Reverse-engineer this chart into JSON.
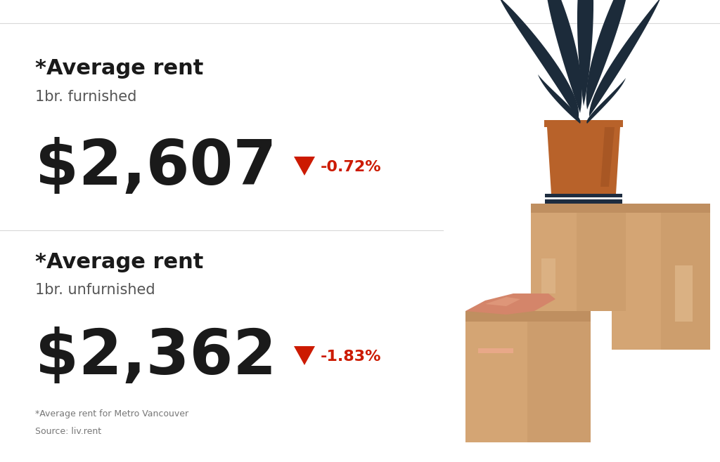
{
  "background_color": "#ffffff",
  "border_color": "#d8d8d8",
  "text_color_dark": "#1a1a1a",
  "text_color_medium": "#555555",
  "text_color_light": "#777777",
  "red_color": "#cc1a00",
  "section1": {
    "label": "*Average rent",
    "sublabel": "1br. furnished",
    "value": "$2,607",
    "change": "-0.72%"
  },
  "section2": {
    "label": "*Average rent",
    "sublabel": "1br. unfurnished",
    "value": "$2,362",
    "change": "-1.83%"
  },
  "footnote1": "*Average rent for Metro Vancouver",
  "footnote2": "Source: liv.rent",
  "box_color": "#D4A574",
  "box_shadow": "#BF8F60",
  "box_light": "#E8C49A",
  "pot_color": "#B8622A",
  "pot_shadow": "#9A4E20",
  "pot_light": "#C87840",
  "plant_color": "#1C2B3A",
  "book_dark": "#1E2D40",
  "book_light": "#eef0f2",
  "hand_color": "#D4856A",
  "hand_light": "#E8A888"
}
